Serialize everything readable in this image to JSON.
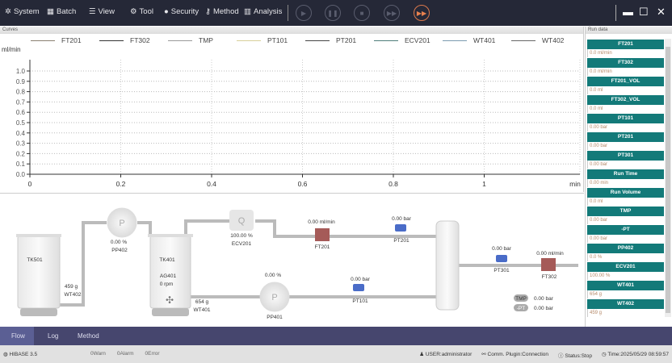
{
  "menu": [
    {
      "label": "System",
      "icon": "gear-icon"
    },
    {
      "label": "Batch",
      "icon": "grid-icon"
    },
    {
      "label": "View",
      "icon": "list-icon"
    },
    {
      "label": "Tool",
      "icon": "tools-icon"
    },
    {
      "label": "Security",
      "icon": "shield-icon"
    },
    {
      "label": "Method",
      "icon": "key-icon"
    },
    {
      "label": "Analysis",
      "icon": "bar-chart-icon"
    }
  ],
  "controls": [
    "play-icon",
    "pause-icon",
    "stop-icon",
    "fast-forward-icon",
    "skip-icon"
  ],
  "curves": {
    "title": "Curves"
  },
  "chart_data": {
    "type": "line",
    "ylabel": "ml/min",
    "xlabel": "min",
    "xlim": [
      0,
      1.2
    ],
    "ylim": [
      0,
      1.0
    ],
    "xticks": [
      "0",
      "0.2",
      "0.4",
      "0.6",
      "0.8",
      "1"
    ],
    "yticks": [
      "0.0",
      "0.1",
      "0.2",
      "0.3",
      "0.4",
      "0.5",
      "0.6",
      "0.7",
      "0.8",
      "0.9",
      "1.0"
    ],
    "grid": true,
    "series": [
      {
        "name": "FT201",
        "color": "#8a8070"
      },
      {
        "name": "FT302",
        "color": "#333333"
      },
      {
        "name": "TMP",
        "color": "#999999"
      },
      {
        "name": "PT101",
        "color": "#d8cf9a"
      },
      {
        "name": "PT201",
        "color": "#444444"
      },
      {
        "name": "ECV201",
        "color": "#4f7d7a"
      },
      {
        "name": "WT401",
        "color": "#7b9bb0"
      },
      {
        "name": "WT402",
        "color": "#666666"
      }
    ]
  },
  "rundata": {
    "title": "Run data",
    "items": [
      {
        "label": "FT201",
        "value": "0.0 ml/min"
      },
      {
        "label": "FT302",
        "value": "0.0 ml/min"
      },
      {
        "label": "FT201_VOL",
        "value": "0.0 ml"
      },
      {
        "label": "FT302_VOL",
        "value": "0.0 ml"
      },
      {
        "label": "PT101",
        "value": "0.00 bar"
      },
      {
        "label": "PT201",
        "value": "0.00 bar"
      },
      {
        "label": "PT301",
        "value": "0.00 bar"
      },
      {
        "label": "Run Time",
        "value": "0.00 min"
      },
      {
        "label": "Run Volume",
        "value": "0.0 ml"
      },
      {
        "label": "TMP",
        "value": "0.00 bar"
      },
      {
        "label": "-PT",
        "value": "0.00 bar"
      },
      {
        "label": "PP402",
        "value": "0.0 %"
      },
      {
        "label": "ECV201",
        "value": "100.00 %"
      },
      {
        "label": "WT401",
        "value": "654 g"
      },
      {
        "label": "WT402",
        "value": "459 g"
      }
    ]
  },
  "flow": {
    "tk501": "TK501",
    "tk401": "TK401",
    "ag401": "AG401",
    "ag401_speed": "0 rpm",
    "wt402_val": "459 g",
    "wt402": "WT402",
    "wt401_val": "654 g",
    "wt401": "WT401",
    "pp402_val": "0.00  %",
    "pp402": "PP402",
    "pp401_val": "0.00 %",
    "pp401": "PP401",
    "pump_glyph": "P",
    "valve_glyph": "Q",
    "ecv201_val": "100.00 %",
    "ecv201": "ECV201",
    "ft201_val": "0.00 ml/min",
    "ft201": "FT201",
    "pt201_val": "0.00 bar",
    "pt201": "PT201",
    "pt101_val": "0.00 bar",
    "pt101": "PT101",
    "pt301_val": "0.00 bar",
    "pt301": "PT301",
    "ft302_val": "0.00 ml/min",
    "ft302": "FT302",
    "tmp_label": "TMP",
    "tmp_val": "0.00 bar",
    "dpt_label": "-PT",
    "dpt_val": "0.00 bar"
  },
  "tabs": [
    {
      "label": "Flow",
      "active": true
    },
    {
      "label": "Log"
    },
    {
      "label": "Method"
    }
  ],
  "status": {
    "version": "HIBASE 3.5",
    "warn": "0Warn",
    "alarm": "0Alarm",
    "error": "0Error",
    "user": "USER:administrator",
    "comm": "Comm. Plugin:Connection",
    "state": "Status:Stop",
    "time": "Time:2025/05/29 08:59:57"
  }
}
